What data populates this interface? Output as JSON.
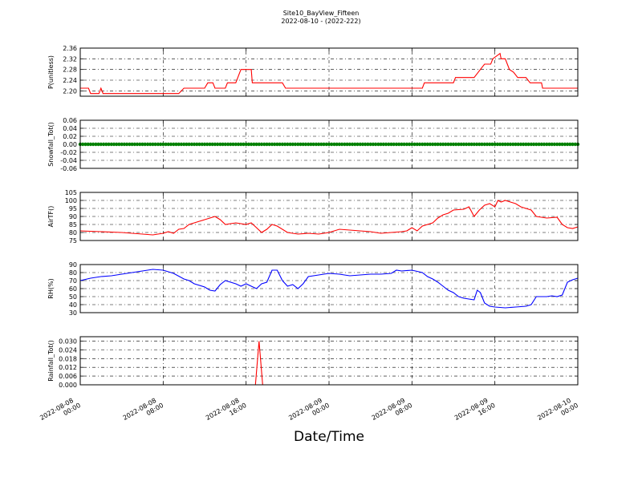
{
  "title_line1": "Site10_BayView_Fifteen",
  "title_line2": "2022-08-10 - (2022-222)",
  "xlabel": "Date/Time",
  "x_ticks": [
    {
      "line1": "2022-08-08",
      "line2": "00:00",
      "h": 0
    },
    {
      "line1": "2022-08-08",
      "line2": "08:00",
      "h": 8
    },
    {
      "line1": "2022-08-08",
      "line2": "16:00",
      "h": 16
    },
    {
      "line1": "2022-08-09",
      "line2": "00:00",
      "h": 24
    },
    {
      "line1": "2022-08-09",
      "line2": "08:00",
      "h": 32
    },
    {
      "line1": "2022-08-09",
      "line2": "16:00",
      "h": 40
    },
    {
      "line1": "2022-08-10",
      "line2": "00:00",
      "h": 48
    }
  ],
  "chart_data": [
    {
      "type": "line",
      "ylabel": "P(unitless)",
      "ylim": [
        2.18,
        2.36
      ],
      "yticks": [
        "2.20",
        "2.24",
        "2.28",
        "2.32",
        "2.36"
      ],
      "color": "#ff0000",
      "points": [
        [
          0,
          2.21
        ],
        [
          0.8,
          2.21
        ],
        [
          1,
          2.19
        ],
        [
          1.8,
          2.19
        ],
        [
          2,
          2.21
        ],
        [
          2.2,
          2.19
        ],
        [
          5,
          2.19
        ],
        [
          6,
          2.19
        ],
        [
          7,
          2.19
        ],
        [
          8,
          2.19
        ],
        [
          9,
          2.19
        ],
        [
          9.5,
          2.19
        ],
        [
          10,
          2.21
        ],
        [
          12,
          2.21
        ],
        [
          12.3,
          2.23
        ],
        [
          12.8,
          2.23
        ],
        [
          13,
          2.21
        ],
        [
          14,
          2.21
        ],
        [
          14.2,
          2.23
        ],
        [
          15,
          2.23
        ],
        [
          15.5,
          2.28
        ],
        [
          16.5,
          2.28
        ],
        [
          16.6,
          2.23
        ],
        [
          18,
          2.23
        ],
        [
          19,
          2.23
        ],
        [
          19.5,
          2.23
        ],
        [
          19.8,
          2.21
        ],
        [
          22,
          2.21
        ],
        [
          23,
          2.21
        ],
        [
          24,
          2.21
        ],
        [
          26,
          2.21
        ],
        [
          28,
          2.21
        ],
        [
          30,
          2.21
        ],
        [
          32,
          2.21
        ],
        [
          33,
          2.21
        ],
        [
          33.2,
          2.23
        ],
        [
          36,
          2.23
        ],
        [
          36.2,
          2.25
        ],
        [
          38,
          2.25
        ],
        [
          38.8,
          2.29
        ],
        [
          39,
          2.3
        ],
        [
          39.6,
          2.3
        ],
        [
          39.8,
          2.32
        ],
        [
          40.5,
          2.34
        ],
        [
          40.6,
          2.32
        ],
        [
          41,
          2.32
        ],
        [
          41.4,
          2.28
        ],
        [
          41.8,
          2.27
        ],
        [
          42.2,
          2.25
        ],
        [
          43,
          2.25
        ],
        [
          43.4,
          2.23
        ],
        [
          44,
          2.23
        ],
        [
          44.5,
          2.23
        ],
        [
          44.6,
          2.21
        ],
        [
          46,
          2.21
        ],
        [
          47,
          2.21
        ],
        [
          48,
          2.21
        ]
      ]
    },
    {
      "type": "scatter",
      "ylabel": "Snowfall_Tot()",
      "ylim": [
        -0.06,
        0.06
      ],
      "yticks": [
        "0.06",
        "0.04",
        "0.02",
        "0.00",
        "-0.02",
        "-0.04",
        "-0.06"
      ],
      "color": "#008000",
      "constant_value": 0.0,
      "x_range": [
        0,
        48
      ]
    },
    {
      "type": "line",
      "ylabel": "AirTF()",
      "ylim": [
        75,
        105
      ],
      "yticks": [
        "105",
        "100",
        "95",
        "90",
        "85",
        "80",
        "75"
      ],
      "color": "#ff0000",
      "points": [
        [
          0,
          81
        ],
        [
          2,
          80.5
        ],
        [
          4,
          80
        ],
        [
          6,
          79
        ],
        [
          7,
          78.5
        ],
        [
          8,
          79.5
        ],
        [
          8.5,
          80.5
        ],
        [
          9,
          79.5
        ],
        [
          9.5,
          82
        ],
        [
          10,
          82.5
        ],
        [
          10.5,
          85
        ],
        [
          11,
          86
        ],
        [
          11.5,
          87
        ],
        [
          12,
          88
        ],
        [
          12.5,
          89
        ],
        [
          13,
          90
        ],
        [
          13.5,
          88
        ],
        [
          14,
          85
        ],
        [
          15,
          86
        ],
        [
          16,
          85
        ],
        [
          16.5,
          86
        ],
        [
          17,
          83
        ],
        [
          17.5,
          80
        ],
        [
          18,
          82
        ],
        [
          18.5,
          85
        ],
        [
          19,
          84
        ],
        [
          20,
          80
        ],
        [
          21,
          79
        ],
        [
          22,
          79.5
        ],
        [
          23,
          79
        ],
        [
          24,
          80
        ],
        [
          25,
          82
        ],
        [
          26,
          81.5
        ],
        [
          27,
          81
        ],
        [
          28,
          80.5
        ],
        [
          29,
          79.5
        ],
        [
          30,
          80
        ],
        [
          31,
          80.5
        ],
        [
          31.5,
          81
        ],
        [
          32,
          83
        ],
        [
          32.5,
          81
        ],
        [
          33,
          84
        ],
        [
          34,
          86
        ],
        [
          34.5,
          89
        ],
        [
          35,
          91
        ],
        [
          35.5,
          92
        ],
        [
          36,
          94
        ],
        [
          37,
          94.5
        ],
        [
          37.5,
          96
        ],
        [
          38,
          90
        ],
        [
          38.5,
          94
        ],
        [
          39,
          97
        ],
        [
          39.5,
          98
        ],
        [
          40,
          96
        ],
        [
          40.3,
          100
        ],
        [
          40.6,
          99
        ],
        [
          41,
          100
        ],
        [
          41.5,
          99
        ],
        [
          42,
          98
        ],
        [
          42.5,
          96
        ],
        [
          43,
          95
        ],
        [
          43.5,
          94
        ],
        [
          44,
          90
        ],
        [
          45,
          89
        ],
        [
          46,
          89.5
        ],
        [
          46.5,
          85
        ],
        [
          47,
          83
        ],
        [
          47.5,
          82.5
        ],
        [
          48,
          83.5
        ]
      ]
    },
    {
      "type": "line",
      "ylabel": "RH(%)",
      "ylim": [
        30,
        90
      ],
      "yticks": [
        "90",
        "80",
        "70",
        "60",
        "50",
        "40",
        "30"
      ],
      "color": "#0000ff",
      "points": [
        [
          0,
          70
        ],
        [
          1,
          73
        ],
        [
          2,
          75
        ],
        [
          3,
          76
        ],
        [
          4,
          78
        ],
        [
          5,
          80
        ],
        [
          6,
          82
        ],
        [
          7,
          84
        ],
        [
          8,
          83
        ],
        [
          9,
          79
        ],
        [
          10,
          72
        ],
        [
          10.5,
          70
        ],
        [
          11,
          66
        ],
        [
          12,
          62
        ],
        [
          12.5,
          58
        ],
        [
          13,
          57
        ],
        [
          13.5,
          65
        ],
        [
          14,
          70
        ],
        [
          15,
          66
        ],
        [
          15.5,
          63
        ],
        [
          16,
          66
        ],
        [
          16.5,
          63
        ],
        [
          17,
          60
        ],
        [
          17.5,
          66
        ],
        [
          18,
          68
        ],
        [
          18.5,
          83
        ],
        [
          19,
          83
        ],
        [
          19.5,
          70
        ],
        [
          20,
          63
        ],
        [
          20.5,
          65
        ],
        [
          21,
          60
        ],
        [
          21.5,
          66
        ],
        [
          22,
          75
        ],
        [
          23,
          77
        ],
        [
          24,
          79
        ],
        [
          25,
          78
        ],
        [
          26,
          76
        ],
        [
          27,
          77
        ],
        [
          28,
          78
        ],
        [
          29,
          78
        ],
        [
          30,
          79
        ],
        [
          30.5,
          83
        ],
        [
          31,
          82
        ],
        [
          32,
          83
        ],
        [
          33,
          80
        ],
        [
          33.5,
          75
        ],
        [
          34,
          72
        ],
        [
          34.5,
          68
        ],
        [
          35,
          63
        ],
        [
          35.5,
          58
        ],
        [
          36,
          55
        ],
        [
          36.5,
          50
        ],
        [
          37,
          48
        ],
        [
          38,
          46
        ],
        [
          38.3,
          58
        ],
        [
          38.6,
          55
        ],
        [
          39,
          42
        ],
        [
          39.5,
          38
        ],
        [
          40,
          37
        ],
        [
          41,
          36
        ],
        [
          42,
          37
        ],
        [
          43,
          38
        ],
        [
          43.5,
          40
        ],
        [
          44,
          50
        ],
        [
          45,
          50
        ],
        [
          45.5,
          51
        ],
        [
          46,
          50
        ],
        [
          46.5,
          52
        ],
        [
          47,
          68
        ],
        [
          47.5,
          71
        ],
        [
          48,
          73
        ]
      ]
    },
    {
      "type": "line",
      "ylabel": "Rainfall_Tot()",
      "ylim": [
        0,
        0.033
      ],
      "yticks": [
        "0.030",
        "0.024",
        "0.018",
        "0.012",
        "0.006",
        "0.000"
      ],
      "color": "#ff0000",
      "points": [
        [
          0,
          0
        ],
        [
          16.9,
          0
        ],
        [
          17.25,
          0.03
        ],
        [
          17.6,
          0
        ],
        [
          48,
          0
        ]
      ]
    }
  ]
}
